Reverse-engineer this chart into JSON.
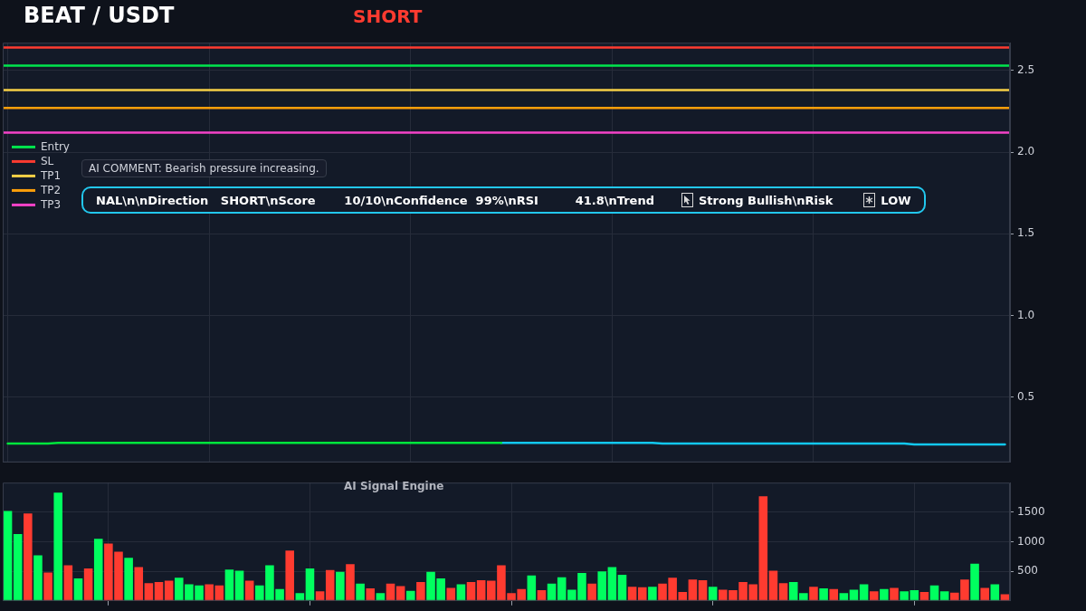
{
  "chart_data": [
    {
      "type": "line",
      "title": "BEAT / USDT",
      "subtitle": "SHORT",
      "categories": [
        null,
        null,
        null,
        null,
        null,
        null,
        null,
        null,
        null,
        null,
        null,
        null,
        null,
        null,
        null,
        null,
        null,
        null,
        null,
        null,
        null,
        null,
        null,
        null,
        null,
        null,
        null,
        null,
        null,
        null,
        null,
        null,
        null,
        null,
        null,
        null,
        null,
        null,
        null,
        null,
        null,
        null,
        null,
        null,
        null,
        null,
        null,
        null,
        null,
        null,
        null,
        null,
        null,
        null,
        null,
        null,
        null,
        null,
        null,
        null,
        null,
        null,
        null,
        null,
        null,
        null,
        null,
        null,
        null,
        null,
        null,
        null,
        null,
        null,
        null,
        null,
        null,
        null,
        null,
        null,
        null,
        null,
        null,
        null,
        null,
        null,
        null,
        null,
        null,
        null,
        null,
        null,
        null,
        null,
        null,
        null,
        null,
        null,
        null,
        null
      ],
      "series": [
        {
          "color": "#00e63c",
          "values": [
            0.215,
            0.215,
            0.215,
            0.215,
            0.215,
            0.22,
            0.22,
            0.22,
            0.22,
            0.22,
            0.22,
            0.22,
            0.22,
            0.22,
            0.22,
            0.22,
            0.22,
            0.22,
            0.22,
            0.22,
            0.22,
            0.22,
            0.22,
            0.22,
            0.22,
            0.22,
            0.22,
            0.22,
            0.22,
            0.22,
            0.22,
            0.22,
            0.22,
            0.22,
            0.22,
            0.22,
            0.22,
            0.22,
            0.22,
            0.22,
            0.22,
            0.22,
            0.22,
            0.22,
            0.22,
            0.22,
            0.22,
            0.22,
            0.22,
            0.22,
            null,
            null,
            null,
            null,
            null,
            null,
            null,
            null,
            null,
            null,
            null,
            null,
            null,
            null,
            null,
            null,
            null,
            null,
            null,
            null,
            null,
            null,
            null,
            null,
            null,
            null,
            null,
            null,
            null,
            null,
            null,
            null,
            null,
            null,
            null,
            null,
            null,
            null,
            null,
            null,
            null,
            null,
            null,
            null,
            null,
            null,
            null,
            null,
            null,
            null
          ]
        },
        {
          "color": "#12c8f0",
          "values": [
            null,
            null,
            null,
            null,
            null,
            null,
            null,
            null,
            null,
            null,
            null,
            null,
            null,
            null,
            null,
            null,
            null,
            null,
            null,
            null,
            null,
            null,
            null,
            null,
            null,
            null,
            null,
            null,
            null,
            null,
            null,
            null,
            null,
            null,
            null,
            null,
            null,
            null,
            null,
            null,
            null,
            null,
            null,
            null,
            null,
            null,
            null,
            null,
            null,
            0.22,
            0.22,
            0.22,
            0.22,
            0.22,
            0.22,
            0.22,
            0.22,
            0.22,
            0.22,
            0.22,
            0.22,
            0.22,
            0.22,
            0.22,
            0.22,
            0.215,
            0.215,
            0.215,
            0.215,
            0.215,
            0.215,
            0.215,
            0.215,
            0.215,
            0.215,
            0.215,
            0.215,
            0.215,
            0.215,
            0.215,
            0.215,
            0.215,
            0.215,
            0.215,
            0.215,
            0.215,
            0.215,
            0.215,
            0.215,
            0.215,
            0.21,
            0.21,
            0.21,
            0.21,
            0.21,
            0.21,
            0.21,
            0.21,
            0.21,
            0.21
          ]
        }
      ],
      "ylim": [
        0.1,
        2.67
      ],
      "yticks": [
        0.5,
        {
          "value": 1,
          "label": "1.0"
        },
        1.5,
        {
          "value": 2,
          "label": "2.0"
        },
        2.5
      ],
      "grid": true,
      "tick_labels": "y",
      "marker": "none",
      "legend": "top left",
      "ref_lines": [
        {
          "axis": "y",
          "value": 2.53,
          "label": "Entry",
          "color": "#00e64d"
        },
        {
          "axis": "y",
          "value": 2.64,
          "label": "SL",
          "color": "#ff3b30"
        },
        {
          "axis": "y",
          "value": 2.38,
          "label": "TP1",
          "color": "#f7d046"
        },
        {
          "axis": "y",
          "value": 2.27,
          "label": "TP2",
          "color": "#ff9f0a"
        },
        {
          "axis": "y",
          "value": 2.12,
          "label": "TP3",
          "color": "#f542c8"
        }
      ],
      "annotations": [
        "AI COMMENT: Bearish pressure increasing.",
        "NAL\\n\\nDirection   SHORT\\nScore       10/10\\nConfidence  99%\\nRSI         41.8\\nTrend",
        "Strong Bullish\\nRisk",
        "LOW"
      ]
    },
    {
      "type": "bar",
      "categories": [
        null,
        null,
        null,
        null,
        null,
        null,
        null,
        null,
        null,
        null,
        null,
        null,
        null,
        null,
        null,
        null,
        null,
        null,
        null,
        null,
        null,
        null,
        null,
        null,
        null,
        null,
        null,
        null,
        null,
        null,
        null,
        null,
        null,
        null,
        null,
        null,
        null,
        null,
        null,
        null,
        null,
        null,
        null,
        null,
        null,
        null,
        null,
        null,
        null,
        null,
        null,
        null,
        null,
        null,
        null,
        null,
        null,
        null,
        null,
        null,
        null,
        null,
        null,
        null,
        null,
        null,
        null,
        null,
        null,
        null,
        null,
        null,
        null,
        null,
        null,
        null,
        null,
        null,
        null,
        null,
        null,
        null,
        null,
        null,
        null,
        null,
        null,
        null,
        null,
        null,
        null,
        null,
        null,
        null,
        null,
        null,
        null,
        null,
        null,
        null
      ],
      "values": [
        1520,
        1130,
        1480,
        770,
        480,
        1830,
        600,
        380,
        550,
        1050,
        970,
        830,
        730,
        570,
        300,
        320,
        340,
        390,
        280,
        260,
        280,
        260,
        530,
        510,
        340,
        260,
        600,
        200,
        850,
        130,
        550,
        160,
        520,
        490,
        620,
        290,
        210,
        130,
        290,
        250,
        170,
        320,
        490,
        380,
        220,
        280,
        320,
        350,
        340,
        600,
        130,
        200,
        430,
        180,
        290,
        400,
        190,
        470,
        290,
        500,
        570,
        440,
        240,
        230,
        240,
        290,
        390,
        150,
        360,
        350,
        240,
        190,
        180,
        320,
        280,
        1770,
        510,
        300,
        320,
        130,
        240,
        210,
        200,
        130,
        190,
        280,
        160,
        200,
        220,
        160,
        180,
        150,
        260,
        160,
        140,
        360,
        630,
        220,
        280,
        110
      ],
      "colors": [
        "#00ff5f",
        "#00ff5f",
        "#ff3b30",
        "#00ff5f",
        "#ff3b30",
        "#00ff5f",
        "#ff3b30",
        "#00ff5f",
        "#ff3b30",
        "#00ff5f",
        "#ff3b30",
        "#ff3b30",
        "#00ff5f",
        "#ff3b30",
        "#ff3b30",
        "#ff3b30",
        "#ff3b30",
        "#00ff5f",
        "#00ff5f",
        "#00ff5f",
        "#ff3b30",
        "#ff3b30",
        "#00ff5f",
        "#00ff5f",
        "#ff3b30",
        "#00ff5f",
        "#00ff5f",
        "#00ff5f",
        "#ff3b30",
        "#00ff5f",
        "#00ff5f",
        "#ff3b30",
        "#ff3b30",
        "#00ff5f",
        "#ff3b30",
        "#00ff5f",
        "#ff3b30",
        "#00ff5f",
        "#ff3b30",
        "#ff3b30",
        "#00ff5f",
        "#ff3b30",
        "#00ff5f",
        "#00ff5f",
        "#ff3b30",
        "#00ff5f",
        "#ff3b30",
        "#ff3b30",
        "#ff3b30",
        "#ff3b30",
        "#ff3b30",
        "#ff3b30",
        "#00ff5f",
        "#ff3b30",
        "#00ff5f",
        "#00ff5f",
        "#00ff5f",
        "#00ff5f",
        "#ff3b30",
        "#00ff5f",
        "#00ff5f",
        "#00ff5f",
        "#ff3b30",
        "#ff3b30",
        "#00ff5f",
        "#ff3b30",
        "#ff3b30",
        "#ff3b30",
        "#ff3b30",
        "#ff3b30",
        "#00ff5f",
        "#ff3b30",
        "#ff3b30",
        "#ff3b30",
        "#ff3b30",
        "#ff3b30",
        "#ff3b30",
        "#ff3b30",
        "#00ff5f",
        "#00ff5f",
        "#ff3b30",
        "#00ff5f",
        "#ff3b30",
        "#00ff5f",
        "#00ff5f",
        "#00ff5f",
        "#ff3b30",
        "#00ff5f",
        "#ff3b30",
        "#00ff5f",
        "#00ff5f",
        "#ff3b30",
        "#00ff5f",
        "#00ff5f",
        "#ff3b30",
        "#ff3b30",
        "#00ff5f",
        "#ff3b30",
        "#00ff5f",
        "#ff3b30"
      ],
      "ylim": [
        0,
        2000
      ],
      "yticks": [
        500,
        1000,
        1500
      ],
      "grid": true,
      "tick_labels": "y",
      "annotations": [
        "AI Signal Engine"
      ]
    }
  ]
}
